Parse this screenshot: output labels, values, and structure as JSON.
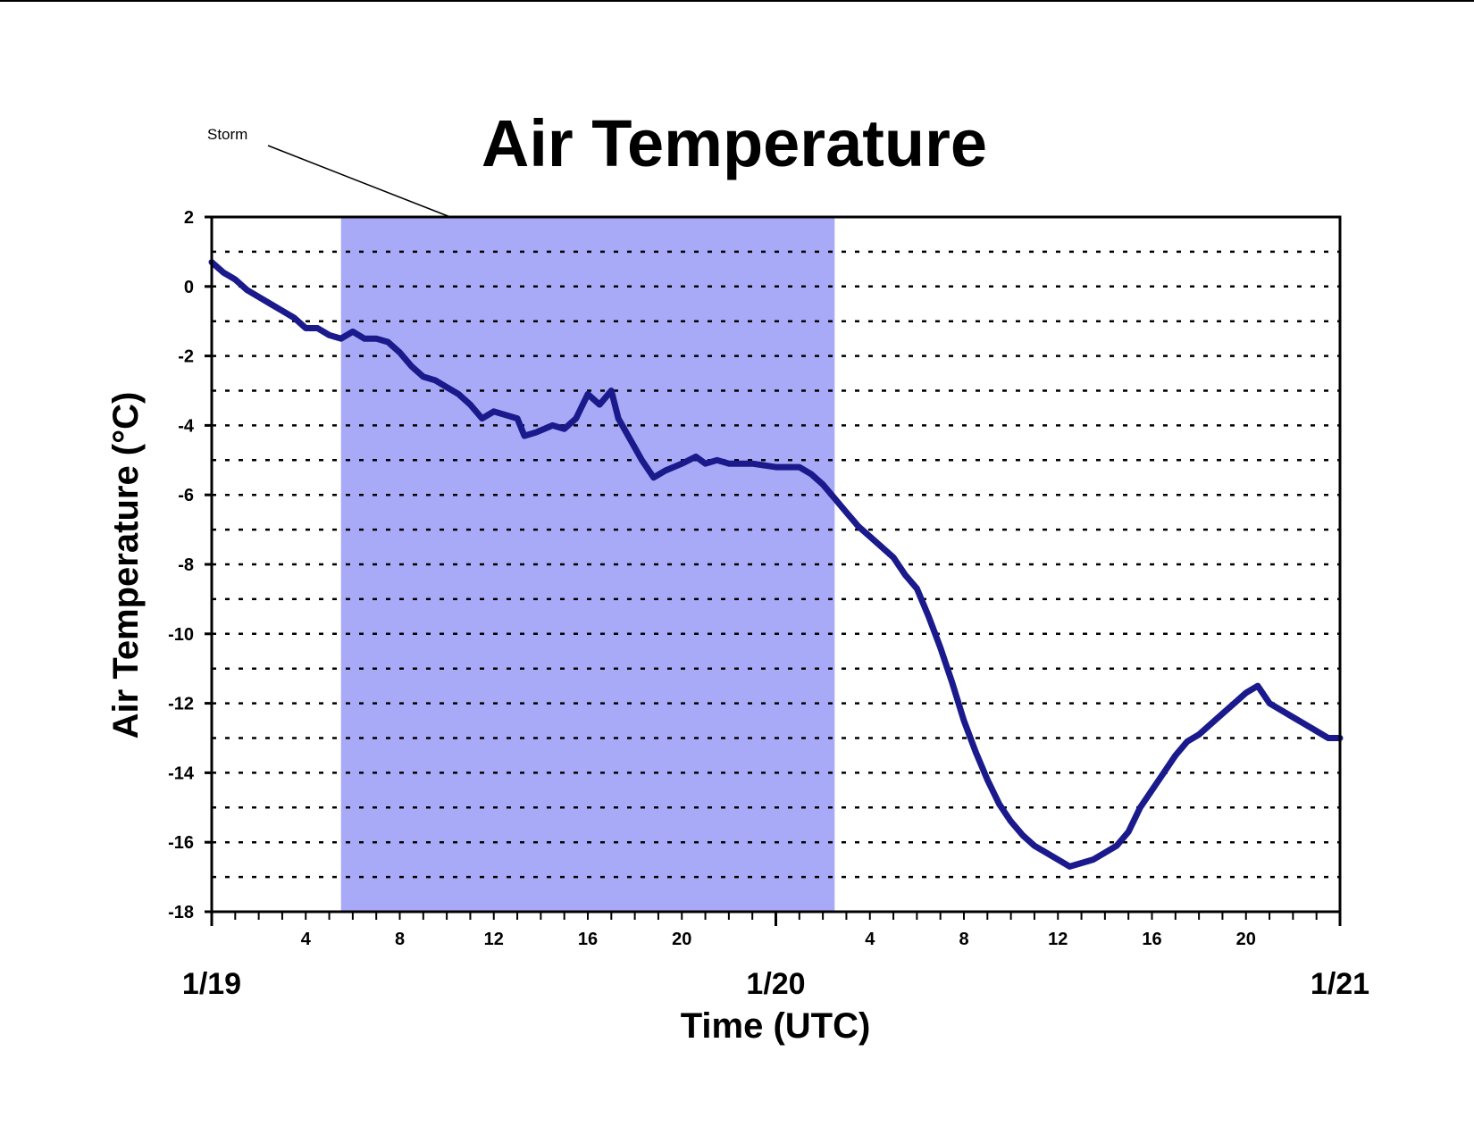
{
  "chart_data": {
    "type": "line",
    "title": "Air Temperature",
    "xlabel": "Time (UTC)",
    "ylabel": "Air Temperature (°C)",
    "ylim": [
      -18,
      2
    ],
    "yticks": [
      "2",
      "0",
      "-2",
      "-4",
      "-6",
      "-8",
      "-10",
      "-12",
      "-14",
      "-16",
      "-18"
    ],
    "xlim_hours": [
      0,
      48
    ],
    "xticks_hours": [
      {
        "hour": 4,
        "label": "4"
      },
      {
        "hour": 8,
        "label": "8"
      },
      {
        "hour": 12,
        "label": "12"
      },
      {
        "hour": 16,
        "label": "16"
      },
      {
        "hour": 20,
        "label": "20"
      },
      {
        "hour": 28,
        "label": "4"
      },
      {
        "hour": 32,
        "label": "8"
      },
      {
        "hour": 36,
        "label": "12"
      },
      {
        "hour": 40,
        "label": "16"
      },
      {
        "hour": 44,
        "label": "20"
      }
    ],
    "day_labels": [
      {
        "hour": 0,
        "label": "1/19"
      },
      {
        "hour": 24,
        "label": "1/20"
      },
      {
        "hour": 48,
        "label": "1/21"
      }
    ],
    "grid": "horizontal-dotted-every-1",
    "line_color": "#1a1a8c",
    "shaded_region": {
      "label": "Storm",
      "start_hour": 5.5,
      "end_hour": 26.5,
      "color": "#a9aaf7"
    },
    "series": [
      {
        "values": [
          [
            0,
            0.7
          ],
          [
            0.5,
            0.4
          ],
          [
            1,
            0.2
          ],
          [
            1.5,
            -0.1
          ],
          [
            2,
            -0.3
          ],
          [
            2.5,
            -0.5
          ],
          [
            3,
            -0.7
          ],
          [
            3.5,
            -0.9
          ],
          [
            4,
            -1.2
          ],
          [
            4.5,
            -1.2
          ],
          [
            5,
            -1.4
          ],
          [
            5.5,
            -1.5
          ],
          [
            6,
            -1.3
          ],
          [
            6.5,
            -1.5
          ],
          [
            7,
            -1.5
          ],
          [
            7.5,
            -1.6
          ],
          [
            8,
            -1.9
          ],
          [
            8.5,
            -2.3
          ],
          [
            9,
            -2.6
          ],
          [
            9.5,
            -2.7
          ],
          [
            10,
            -2.9
          ],
          [
            10.5,
            -3.1
          ],
          [
            11,
            -3.4
          ],
          [
            11.5,
            -3.8
          ],
          [
            12,
            -3.6
          ],
          [
            12.5,
            -3.7
          ],
          [
            13,
            -3.8
          ],
          [
            13.3,
            -4.3
          ],
          [
            13.8,
            -4.2
          ],
          [
            14.5,
            -4.0
          ],
          [
            15,
            -4.1
          ],
          [
            15.5,
            -3.8
          ],
          [
            16,
            -3.1
          ],
          [
            16.5,
            -3.4
          ],
          [
            17,
            -3.0
          ],
          [
            17.3,
            -3.8
          ],
          [
            17.8,
            -4.4
          ],
          [
            18.3,
            -5.0
          ],
          [
            18.8,
            -5.5
          ],
          [
            19.3,
            -5.3
          ],
          [
            20,
            -5.1
          ],
          [
            20.6,
            -4.9
          ],
          [
            21,
            -5.1
          ],
          [
            21.5,
            -5.0
          ],
          [
            22,
            -5.1
          ],
          [
            23,
            -5.1
          ],
          [
            24,
            -5.2
          ],
          [
            25,
            -5.2
          ],
          [
            25.5,
            -5.4
          ],
          [
            26,
            -5.7
          ],
          [
            26.5,
            -6.1
          ],
          [
            27,
            -6.5
          ],
          [
            27.5,
            -6.9
          ],
          [
            28,
            -7.2
          ],
          [
            28.5,
            -7.5
          ],
          [
            29,
            -7.8
          ],
          [
            29.5,
            -8.3
          ],
          [
            30,
            -8.7
          ],
          [
            30.5,
            -9.5
          ],
          [
            31,
            -10.4
          ],
          [
            31.5,
            -11.4
          ],
          [
            32,
            -12.5
          ],
          [
            32.5,
            -13.4
          ],
          [
            33,
            -14.2
          ],
          [
            33.5,
            -14.9
          ],
          [
            34,
            -15.4
          ],
          [
            34.5,
            -15.8
          ],
          [
            35,
            -16.1
          ],
          [
            35.5,
            -16.3
          ],
          [
            36,
            -16.5
          ],
          [
            36.5,
            -16.7
          ],
          [
            37,
            -16.6
          ],
          [
            37.5,
            -16.5
          ],
          [
            38,
            -16.3
          ],
          [
            38.5,
            -16.1
          ],
          [
            39,
            -15.7
          ],
          [
            39.5,
            -15.0
          ],
          [
            40,
            -14.5
          ],
          [
            40.5,
            -14.0
          ],
          [
            41,
            -13.5
          ],
          [
            41.5,
            -13.1
          ],
          [
            42,
            -12.9
          ],
          [
            42.5,
            -12.6
          ],
          [
            43,
            -12.3
          ],
          [
            43.5,
            -12.0
          ],
          [
            44,
            -11.7
          ],
          [
            44.5,
            -11.5
          ],
          [
            45,
            -12.0
          ],
          [
            45.5,
            -12.2
          ],
          [
            46,
            -12.4
          ],
          [
            46.5,
            -12.6
          ],
          [
            47,
            -12.8
          ],
          [
            47.5,
            -13.0
          ],
          [
            48,
            -13.0
          ]
        ]
      }
    ]
  }
}
